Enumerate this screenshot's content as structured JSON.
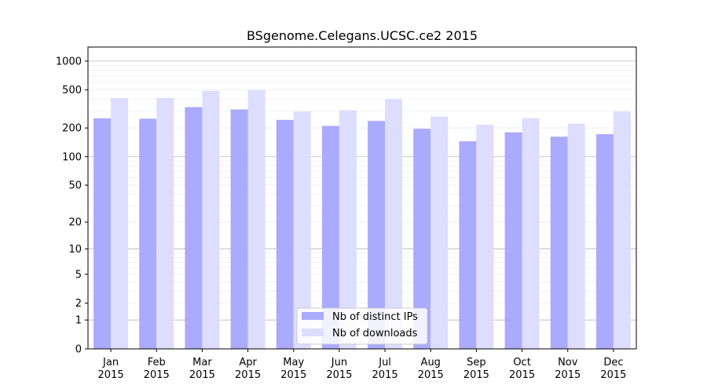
{
  "chart_data": {
    "type": "bar",
    "title": "BSgenome.Celegans.UCSC.ce2 2015",
    "xlabel": "",
    "ylabel": "",
    "yscale": "log(1+y)",
    "ylim": [
      0,
      1400
    ],
    "y_ticks": [
      0,
      1,
      2,
      5,
      10,
      20,
      50,
      100,
      200,
      500,
      1000
    ],
    "y_tick_labels": [
      "0",
      "1",
      "2",
      "5",
      "10",
      "20",
      "50",
      "100",
      "200",
      "500",
      "1000"
    ],
    "categories": [
      "Jan\n2015",
      "Feb\n2015",
      "Mar\n2015",
      "Apr\n2015",
      "May\n2015",
      "Jun\n2015",
      "Jul\n2015",
      "Aug\n2015",
      "Sep\n2015",
      "Oct\n2015",
      "Nov\n2015",
      "Dec\n2015"
    ],
    "series": [
      {
        "name": "Nb of distinct IPs",
        "color": "#aaaaff",
        "values": [
          252,
          250,
          330,
          312,
          243,
          210,
          237,
          196,
          145,
          180,
          162,
          172
        ]
      },
      {
        "name": "Nb of downloads",
        "color": "#ddddff",
        "values": [
          412,
          412,
          488,
          500,
          296,
          307,
          402,
          263,
          216,
          253,
          222,
          297
        ]
      }
    ],
    "grid": true,
    "legend": "bottom-center"
  }
}
